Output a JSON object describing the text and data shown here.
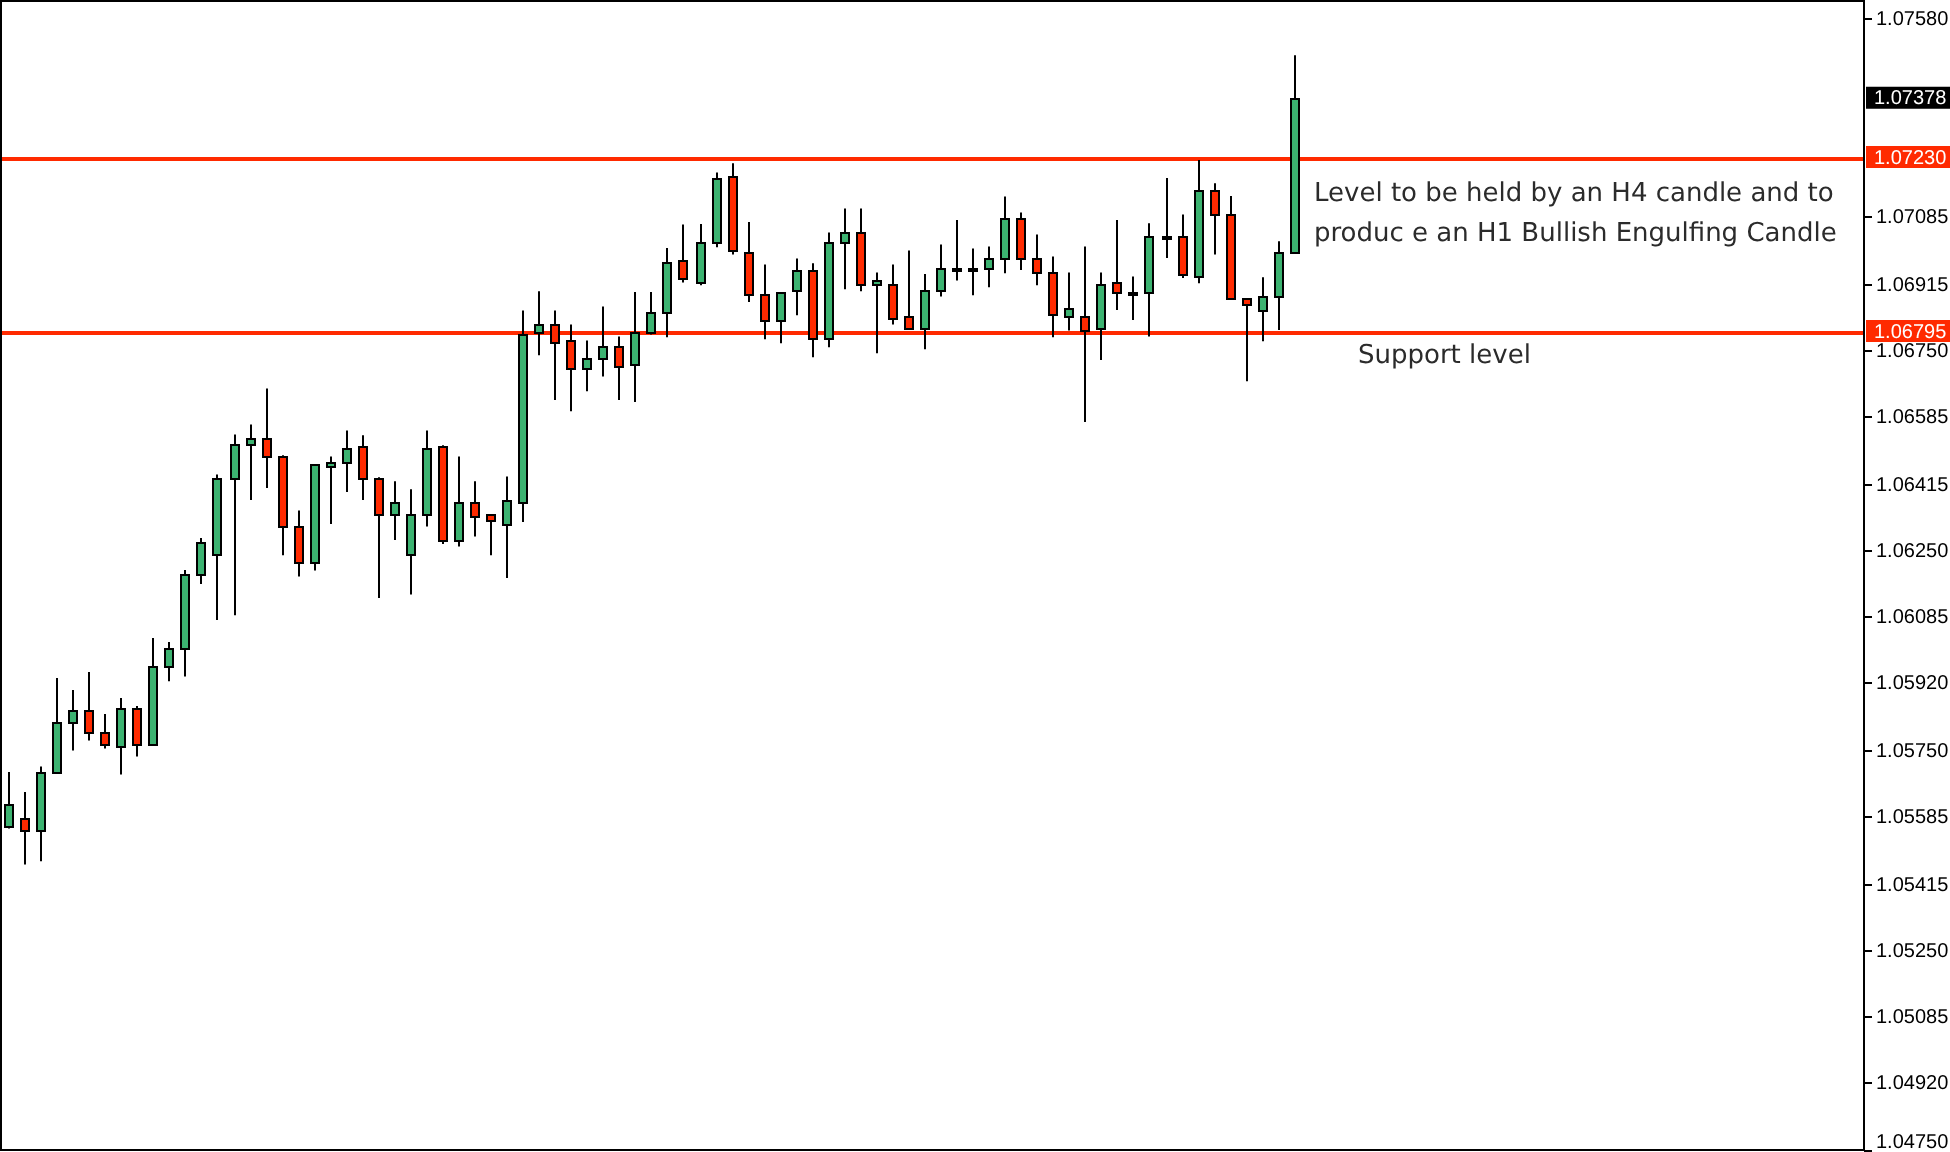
{
  "chart_data": {
    "type": "candlestick",
    "categories": [
      null,
      null,
      null,
      null,
      null,
      null,
      null,
      null,
      null,
      null,
      null,
      null,
      null,
      null,
      null,
      null,
      null,
      null,
      null,
      null,
      null,
      null,
      null,
      null,
      null,
      null,
      null,
      null,
      null,
      null,
      null,
      null,
      null,
      null,
      null,
      null,
      null,
      null,
      null,
      null,
      null,
      null,
      null,
      null,
      null,
      null,
      null,
      null,
      null,
      null,
      null,
      null,
      null,
      null,
      null,
      null,
      null,
      null,
      null,
      null,
      null,
      null,
      null,
      null,
      null,
      null,
      null,
      null,
      null,
      null,
      null,
      null,
      null,
      null,
      null,
      null,
      null,
      null,
      null,
      null,
      null,
      null,
      null,
      null,
      null,
      null,
      null,
      null,
      null,
      null,
      null,
      null,
      null,
      null,
      null,
      null,
      null,
      null,
      null,
      null,
      null,
      null,
      null,
      null,
      null,
      null,
      null,
      null,
      null,
      null,
      null,
      null,
      null,
      null,
      null,
      null
    ],
    "ohlc": [
      [
        1.05559,
        1.05695,
        1.05554,
        1.05614
      ],
      [
        1.05579,
        1.05645,
        1.05464,
        1.05549
      ],
      [
        1.05549,
        1.05709,
        1.05472,
        1.05695
      ],
      [
        1.05697,
        1.0593,
        1.05692,
        1.0582
      ],
      [
        1.05819,
        1.059,
        1.05749,
        1.05849
      ],
      [
        1.05849,
        1.05945,
        1.05774,
        1.05794
      ],
      [
        1.05794,
        1.0584,
        1.05754,
        1.05764
      ],
      [
        1.05759,
        1.0588,
        1.05689,
        1.05854
      ],
      [
        1.05854,
        1.0586,
        1.05734,
        1.05764
      ],
      [
        1.05764,
        1.0603,
        1.0576,
        1.05959
      ],
      [
        1.05959,
        1.0602,
        1.05922,
        1.06004
      ],
      [
        1.06004,
        1.062,
        1.05934,
        1.0619
      ],
      [
        1.0619,
        1.0628,
        1.06165,
        1.06272
      ],
      [
        1.06244,
        1.06439,
        1.06075,
        1.06432
      ],
      [
        1.0643,
        1.06539,
        1.06087,
        1.06517
      ],
      [
        1.06515,
        1.06564,
        1.06375,
        1.0653
      ],
      [
        1.0653,
        1.06654,
        1.06405,
        1.06487
      ],
      [
        1.06487,
        1.06487,
        1.06237,
        1.06312
      ],
      [
        1.06312,
        1.06349,
        1.06184,
        1.0622
      ],
      [
        1.0622,
        1.06464,
        1.06199,
        1.06464
      ],
      [
        1.06462,
        1.06484,
        1.06315,
        1.06472
      ],
      [
        1.0647,
        1.06549,
        1.06395,
        1.06507
      ],
      [
        1.06512,
        1.06537,
        1.06375,
        1.06432
      ],
      [
        1.06432,
        1.06432,
        1.0613,
        1.0634
      ],
      [
        1.0634,
        1.06422,
        1.06275,
        1.06372
      ],
      [
        1.06244,
        1.06402,
        1.06139,
        1.06342
      ],
      [
        1.06342,
        1.06549,
        1.06309,
        1.06507
      ],
      [
        1.06512,
        1.06512,
        1.06265,
        1.06277
      ],
      [
        1.06275,
        1.06484,
        1.06259,
        1.06369
      ],
      [
        1.06369,
        1.06422,
        1.06284,
        1.06335
      ],
      [
        1.06339,
        1.06339,
        1.06237,
        1.06325
      ],
      [
        1.06317,
        1.06434,
        1.0618,
        1.06377
      ],
      [
        1.0637,
        1.06849,
        1.0632,
        1.06792
      ],
      [
        1.06795,
        1.06897,
        1.06737,
        1.06817
      ],
      [
        1.06817,
        1.06849,
        1.06625,
        1.06774
      ],
      [
        1.06774,
        1.06814,
        1.06597,
        1.06704
      ],
      [
        1.06704,
        1.06774,
        1.06647,
        1.06729
      ],
      [
        1.06729,
        1.06859,
        1.06684,
        1.06759
      ],
      [
        1.06759,
        1.06784,
        1.06625,
        1.06709
      ],
      [
        1.06712,
        1.06895,
        1.0662,
        1.06794
      ],
      [
        1.06794,
        1.06895,
        1.06789,
        1.06845
      ],
      [
        1.06844,
        1.07005,
        1.06782,
        1.06969
      ],
      [
        1.06974,
        1.07064,
        1.06919,
        1.06929
      ],
      [
        1.0692,
        1.07065,
        1.06912,
        1.07019
      ],
      [
        1.07019,
        1.07194,
        1.07007,
        1.07179
      ],
      [
        1.07184,
        1.07217,
        1.06989,
        1.06997
      ],
      [
        1.06997,
        1.0707,
        1.0687,
        1.0689
      ],
      [
        1.06889,
        1.06964,
        1.06777,
        1.06824
      ],
      [
        1.06822,
        1.06894,
        1.06767,
        1.06894
      ],
      [
        1.06898,
        1.06979,
        1.06837,
        1.06949
      ],
      [
        1.06949,
        1.06967,
        1.06732,
        1.06777
      ],
      [
        1.06777,
        1.07044,
        1.06757,
        1.07019
      ],
      [
        1.07019,
        1.07104,
        1.06902,
        1.07044
      ],
      [
        1.07044,
        1.07104,
        1.06897,
        1.06912
      ],
      [
        1.06914,
        1.06944,
        1.06742,
        1.06924
      ],
      [
        1.06914,
        1.06964,
        1.06814,
        1.0683
      ],
      [
        1.06834,
        1.06999,
        1.06805,
        1.06805
      ],
      [
        1.06805,
        1.0694,
        1.06752,
        1.06899
      ],
      [
        1.06899,
        1.07014,
        1.06884,
        1.06954
      ],
      [
        1.06949,
        1.07075,
        1.06924,
        1.06954
      ],
      [
        1.06949,
        1.07004,
        1.06887,
        1.06954
      ],
      [
        1.06952,
        1.07009,
        1.06907,
        1.06979
      ],
      [
        1.06979,
        1.07134,
        1.06942,
        1.07079
      ],
      [
        1.07079,
        1.07094,
        1.0695,
        1.06979
      ],
      [
        1.06979,
        1.07039,
        1.06912,
        1.06944
      ],
      [
        1.06944,
        1.06984,
        1.06782,
        1.06837
      ],
      [
        1.06837,
        1.06944,
        1.06799,
        1.06857
      ],
      [
        1.06837,
        1.07009,
        1.0657,
        1.06802
      ],
      [
        1.06804,
        1.06944,
        1.06725,
        1.06914
      ],
      [
        1.06918,
        1.07075,
        1.0685,
        1.06892
      ],
      [
        1.06894,
        1.06934,
        1.06825,
        1.06897
      ],
      [
        1.06892,
        1.07067,
        1.06784,
        1.07034
      ],
      [
        1.07032,
        1.0718,
        1.0698,
        1.07037
      ],
      [
        1.07034,
        1.07089,
        1.0693,
        1.06937
      ],
      [
        1.06934,
        1.07225,
        1.06917,
        1.07149
      ],
      [
        1.07149,
        1.07167,
        1.06989,
        1.07089
      ],
      [
        1.07089,
        1.07135,
        1.06879,
        1.06879
      ],
      [
        1.0688,
        1.0688,
        1.06672,
        1.06867
      ],
      [
        1.06852,
        1.06932,
        1.06772,
        1.06885
      ],
      [
        1.06889,
        1.07022,
        1.068,
        1.06997
      ],
      [
        1.06995,
        1.07487,
        1.06995,
        1.07378
      ],
      null,
      null,
      null,
      null,
      null,
      null,
      null,
      null,
      null,
      null,
      null,
      null,
      null,
      null,
      null,
      null,
      null,
      null,
      null,
      null,
      null,
      null,
      null,
      null,
      null,
      null,
      null,
      null,
      null,
      null,
      null,
      null,
      null,
      null,
      null
    ],
    "colors": [
      "#3cb371",
      "#ff2a00",
      "#3cb371",
      "#3cb371",
      "#3cb371",
      "#ff2a00",
      "#ff2a00",
      "#3cb371",
      "#ff2a00",
      "#3cb371",
      "#3cb371",
      "#3cb371",
      "#3cb371",
      "#3cb371",
      "#3cb371",
      "#3cb371",
      "#ff2a00",
      "#ff2a00",
      "#ff2a00",
      "#3cb371",
      "#3cb371",
      "#3cb371",
      "#ff2a00",
      "#ff2a00",
      "#3cb371",
      "#3cb371",
      "#3cb371",
      "#ff2a00",
      "#3cb371",
      "#ff2a00",
      "#ff2a00",
      "#3cb371",
      "#3cb371",
      "#3cb371",
      "#ff2a00",
      "#ff2a00",
      "#3cb371",
      "#3cb371",
      "#ff2a00",
      "#3cb371",
      "#3cb371",
      "#3cb371",
      "#ff2a00",
      "#3cb371",
      "#3cb371",
      "#ff2a00",
      "#ff2a00",
      "#ff2a00",
      "#3cb371",
      "#3cb371",
      "#ff2a00",
      "#3cb371",
      "#3cb371",
      "#ff2a00",
      "#3cb371",
      "#ff2a00",
      "#ff2a00",
      "#3cb371",
      "#3cb371",
      "#3cb371",
      "#3cb371",
      "#3cb371",
      "#3cb371",
      "#ff2a00",
      "#ff2a00",
      "#ff2a00",
      "#3cb371",
      "#ff2a00",
      "#3cb371",
      "#ff2a00",
      "#3cb371",
      "#3cb371",
      "#3cb371",
      "#ff2a00",
      "#3cb371",
      "#ff2a00",
      "#ff2a00",
      "#ff2a00",
      "#3cb371",
      "#3cb371",
      "#3cb371",
      null,
      null,
      null,
      null,
      null,
      null,
      null,
      null,
      null,
      null,
      null,
      null,
      null,
      null,
      null,
      null,
      null,
      null,
      null,
      null,
      null,
      null,
      null,
      null,
      null,
      null,
      null,
      null,
      null,
      null,
      null,
      null,
      null,
      null,
      null
    ],
    "ylim": [
      1.0475,
      1.07625
    ],
    "yticks": [
      {
        "value": 1.0758,
        "label": "1.07580"
      },
      {
        "value": 1.07085,
        "label": "1.07085"
      },
      {
        "value": 1.06915,
        "label": "1.06915"
      },
      {
        "value": 1.0675,
        "label": "1.06750"
      },
      {
        "value": 1.06585,
        "label": "1.06585"
      },
      {
        "value": 1.06415,
        "label": "1.06415"
      },
      {
        "value": 1.0625,
        "label": "1.06250"
      },
      {
        "value": 1.06085,
        "label": "1.06085"
      },
      {
        "value": 1.0592,
        "label": "1.05920"
      },
      {
        "value": 1.0575,
        "label": "1.05750"
      },
      {
        "value": 1.05585,
        "label": "1.05585"
      },
      {
        "value": 1.05415,
        "label": "1.05415"
      },
      {
        "value": 1.0525,
        "label": "1.05250"
      },
      {
        "value": 1.05085,
        "label": "1.05085"
      },
      {
        "value": 1.0492,
        "label": "1.04920"
      },
      {
        "value": 1.0475,
        "label": "1.04750"
      }
    ],
    "tick_labels": "y",
    "ref_lines": [
      {
        "axis": "y",
        "value": 1.0723,
        "label": "1.07230",
        "color": "#ff2a00"
      },
      {
        "axis": "y",
        "value": 1.06795,
        "label": "1.06795",
        "color": "#ff2a00"
      }
    ],
    "annotations": [
      "Level to be held by an H4 candle and to produc e an H1 Bullish Engulfing Candle",
      "Support level",
      "1.07378"
    ],
    "legend": false
  }
}
